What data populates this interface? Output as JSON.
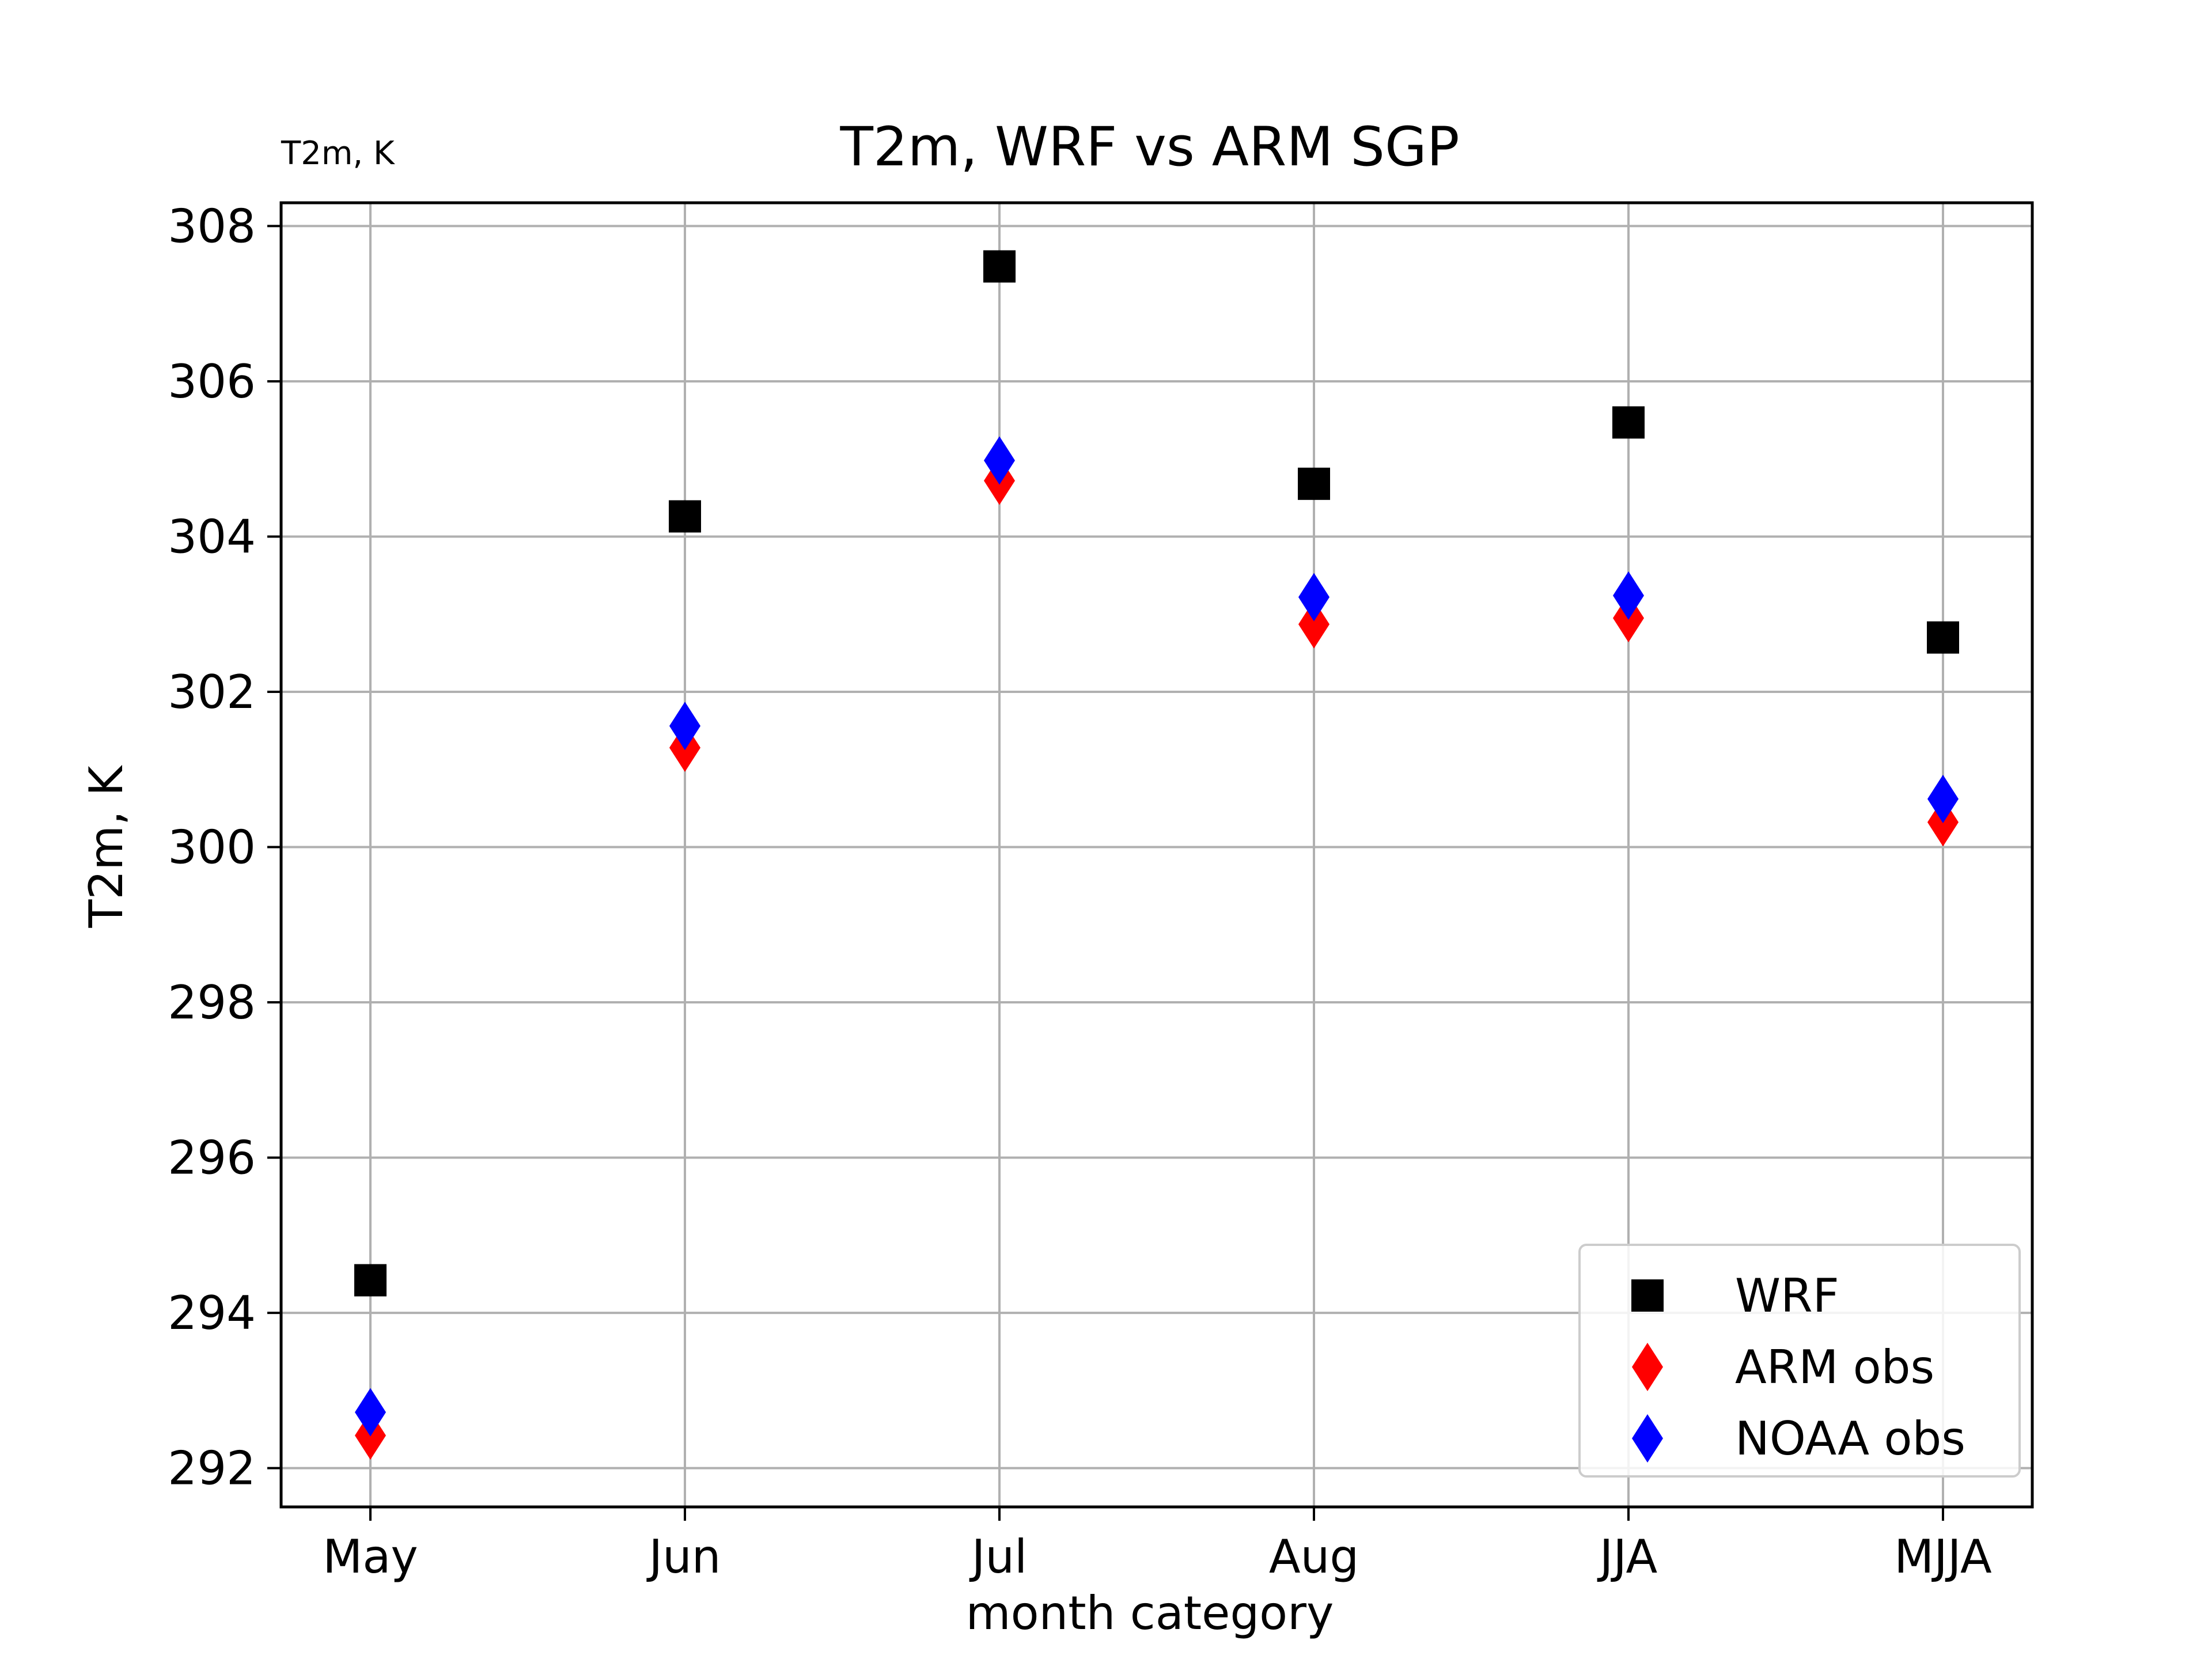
{
  "chart_data": {
    "type": "scatter",
    "title": "T2m, WRF vs ARM SGP",
    "corner_label": "T2m, K",
    "xlabel": "month category",
    "ylabel": "T2m, K",
    "categories": [
      "May",
      "Jun",
      "Jul",
      "Aug",
      "JJA",
      "MJJA"
    ],
    "ylim": [
      291.5,
      308.3
    ],
    "yticks": [
      292,
      294,
      296,
      298,
      300,
      302,
      304,
      306,
      308
    ],
    "grid": true,
    "legend_position": "lower-right",
    "series": [
      {
        "name": "WRF",
        "marker": "square",
        "color": "#000000",
        "values": [
          294.42,
          304.26,
          307.48,
          304.68,
          305.47,
          302.7
        ]
      },
      {
        "name": "ARM obs",
        "marker": "diamond",
        "color": "#ff0000",
        "values": [
          292.42,
          301.28,
          304.72,
          302.87,
          302.95,
          300.32
        ]
      },
      {
        "name": "NOAA obs",
        "marker": "diamond",
        "color": "#0000ff",
        "values": [
          292.72,
          301.56,
          304.98,
          303.22,
          303.24,
          300.62
        ]
      }
    ]
  }
}
